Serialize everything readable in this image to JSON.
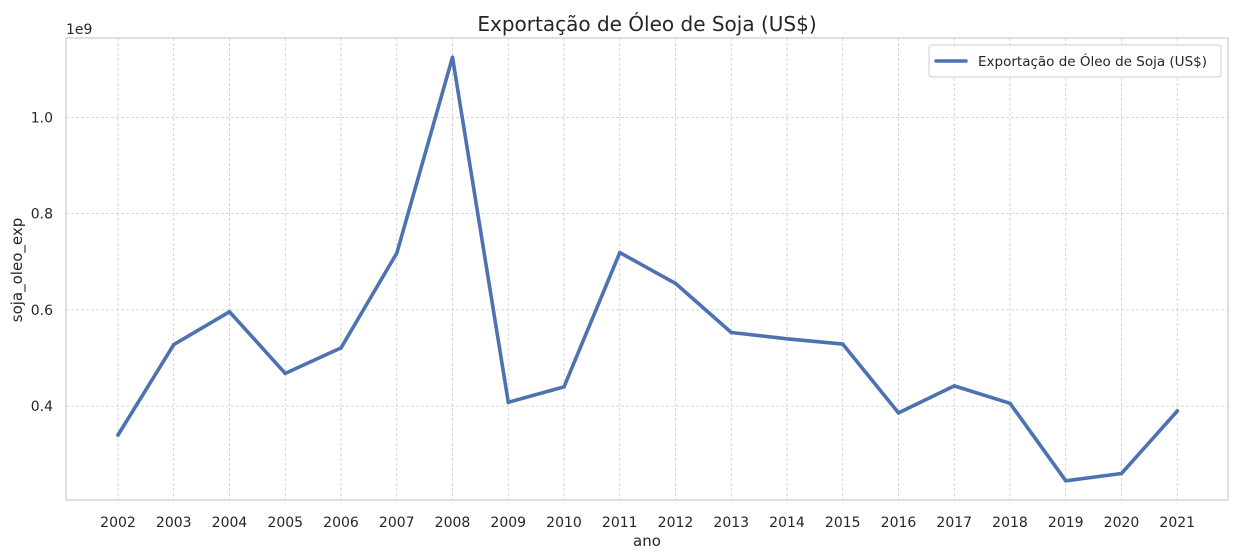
{
  "chart_data": {
    "type": "line",
    "title": "Exportação de Óleo de Soja (US$)",
    "xlabel": "ano",
    "ylabel": "soja_oleo_exp",
    "y_offset_text": "1e9",
    "y_scale_factor": 1000000000,
    "x": [
      "2002",
      "2003",
      "2004",
      "2005",
      "2006",
      "2007",
      "2008",
      "2009",
      "2010",
      "2011",
      "2012",
      "2013",
      "2014",
      "2015",
      "2016",
      "2017",
      "2018",
      "2019",
      "2020",
      "2021"
    ],
    "series": [
      {
        "name": "Exportação de Óleo de Soja (US$)",
        "color": "#4c72b0",
        "values": [
          340000000,
          528000000,
          596000000,
          468000000,
          521000000,
          718000000,
          1125000000,
          408000000,
          440000000,
          719000000,
          655000000,
          553000000,
          540000000,
          529000000,
          386000000,
          442000000,
          406000000,
          245000000,
          260000000,
          390000000
        ]
      }
    ],
    "yticks": [
      0.4,
      0.6,
      0.8,
      1.0
    ],
    "ytick_labels": [
      "0.4",
      "0.6",
      "0.8",
      "1.0"
    ],
    "ylim": [
      205000000,
      1165000000
    ],
    "grid": true,
    "legend_position": "top-right"
  }
}
